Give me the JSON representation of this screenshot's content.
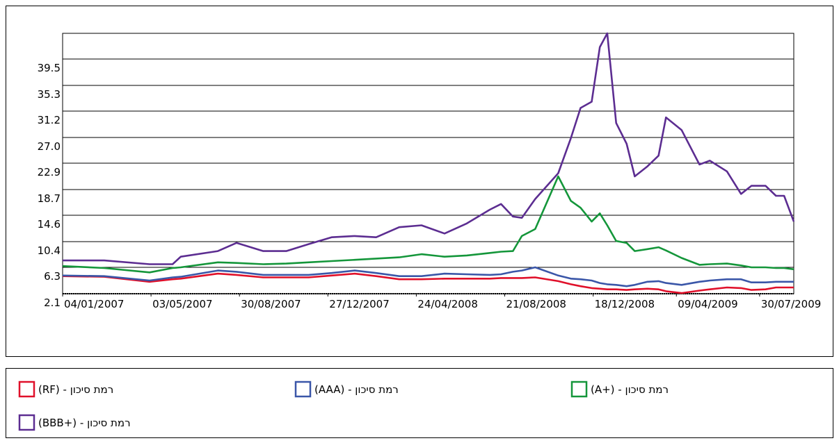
{
  "chart_data": {
    "type": "line",
    "x": [
      "04/01/2007",
      "01/03/2007",
      "01/05/2007",
      "01/06/2007",
      "12/06/2007",
      "01/08/2007",
      "26/08/2007",
      "01/10/2007",
      "01/11/2007",
      "01/12/2007",
      "01/01/2008",
      "01/02/2008",
      "01/03/2008",
      "01/04/2008",
      "01/05/2008",
      "01/06/2008",
      "01/07/2008",
      "01/08/2008",
      "16/08/2008",
      "01/09/2008",
      "13/09/2008",
      "01/10/2008",
      "01/11/2008",
      "18/11/2008",
      "01/12/2008",
      "16/12/2008",
      "27/12/2008",
      "06/01/2009",
      "18/01/2009",
      "01/02/2009",
      "12/02/2009",
      "01/03/2009",
      "16/03/2009",
      "26/03/2009",
      "16/04/2009",
      "10/05/2009",
      "24/05/2009",
      "16/06/2009",
      "05/07/2009",
      "19/07/2009",
      "07/08/2009",
      "21/08/2009",
      "01/09/2009",
      "14/09/2009"
    ],
    "series": [
      {
        "name": "(RF) - רמת סיכון",
        "color": "#e0102a",
        "values": [
          4.9,
          4.8,
          4.0,
          4.4,
          4.5,
          5.3,
          5.1,
          4.7,
          4.7,
          4.7,
          5.0,
          5.3,
          4.9,
          4.4,
          4.4,
          4.5,
          4.5,
          4.5,
          4.6,
          4.6,
          4.6,
          4.7,
          4.1,
          3.6,
          3.3,
          3.0,
          2.9,
          2.8,
          2.8,
          2.7,
          2.8,
          2.9,
          2.8,
          2.5,
          2.2,
          2.6,
          2.8,
          3.1,
          3.0,
          2.7,
          2.8,
          3.1,
          3.1,
          3.1
        ]
      },
      {
        "name": "(AAA) - רמת סיכון",
        "color": "#3a56a8",
        "values": [
          5.0,
          4.9,
          4.2,
          4.7,
          4.8,
          5.8,
          5.6,
          5.1,
          5.1,
          5.1,
          5.4,
          5.8,
          5.4,
          4.9,
          4.9,
          5.3,
          5.2,
          5.1,
          5.2,
          5.6,
          5.8,
          6.3,
          5.0,
          4.5,
          4.4,
          4.2,
          3.8,
          3.6,
          3.5,
          3.3,
          3.5,
          4.0,
          4.1,
          3.8,
          3.5,
          4.0,
          4.2,
          4.4,
          4.4,
          3.9,
          3.9,
          4.0,
          4.0,
          4.0
        ]
      },
      {
        "name": "(A+) - רמת סיכון",
        "color": "#14963a",
        "values": [
          6.5,
          6.2,
          5.5,
          6.2,
          6.3,
          7.1,
          7.0,
          6.8,
          6.9,
          7.1,
          7.3,
          7.5,
          7.7,
          7.9,
          8.4,
          8.0,
          8.2,
          8.6,
          8.8,
          8.9,
          11.3,
          12.4,
          20.8,
          16.9,
          15.8,
          13.6,
          14.9,
          13.0,
          10.5,
          10.2,
          8.9,
          9.2,
          9.5,
          9.0,
          7.8,
          6.7,
          6.8,
          6.9,
          6.6,
          6.3,
          6.3,
          6.2,
          6.2,
          6.0
        ]
      },
      {
        "name": "(BBB+) - רמת סיכון",
        "color": "#5c2d91",
        "values": [
          7.4,
          7.4,
          6.8,
          6.8,
          8.0,
          8.9,
          10.2,
          8.9,
          8.9,
          10.0,
          11.1,
          11.3,
          11.1,
          12.7,
          13.0,
          11.7,
          13.3,
          15.5,
          16.4,
          14.4,
          14.2,
          17.2,
          21.3,
          26.9,
          31.7,
          32.7,
          41.4,
          43.6,
          29.3,
          26.0,
          20.8,
          22.4,
          24.1,
          30.2,
          28.2,
          22.7,
          23.3,
          21.6,
          18.0,
          19.3,
          19.3,
          17.7,
          17.7,
          13.6
        ]
      }
    ],
    "xlim": [
      "04/01/2007",
      "14/09/2009"
    ],
    "xticks": [
      "04/01/2007",
      "03/05/2007",
      "30/08/2007",
      "27/12/2007",
      "24/04/2008",
      "21/08/2008",
      "18/12/2008",
      "09/04/2009",
      "30/07/2009"
    ],
    "ylim": [
      2.1,
      43.6
    ],
    "yticks": [
      2.1,
      6.3,
      10.4,
      14.6,
      18.7,
      22.9,
      {
        "value": 27,
        "label": "27.0"
      },
      31.2,
      35.3,
      39.5
    ],
    "grid": true
  }
}
